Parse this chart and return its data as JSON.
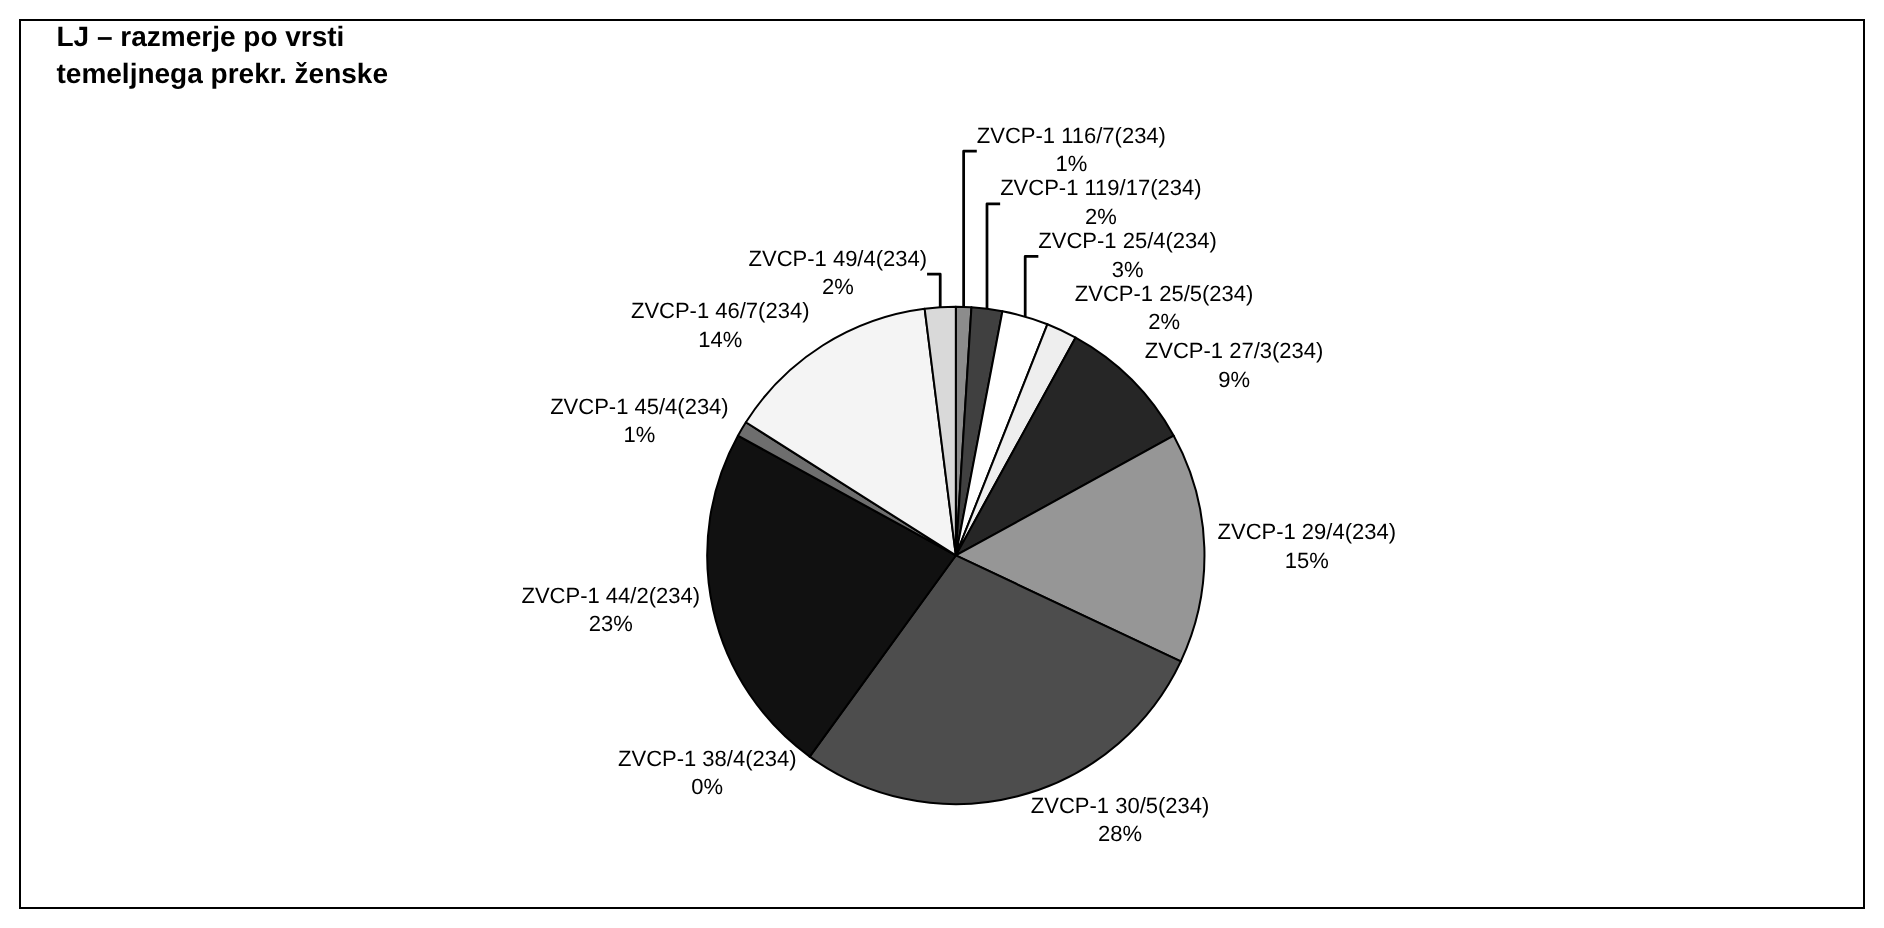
{
  "chart_data": {
    "type": "pie",
    "title": "LJ – razmerje po vrsti\ntemeljnega prekr. ženske",
    "categories": [
      "ZVCP-1 116/7(234)",
      "ZVCP-1 119/17(234)",
      "ZVCP-1 25/4(234)",
      "ZVCP-1 25/5(234)",
      "ZVCP-1 27/3(234)",
      "ZVCP-1 29/4(234)",
      "ZVCP-1 30/5(234)",
      "ZVCP-1 38/4(234)",
      "ZVCP-1 44/2(234)",
      "ZVCP-1 45/4(234)",
      "ZVCP-1 46/7(234)",
      "ZVCP-1 49/4(234)"
    ],
    "values": [
      1,
      2,
      3,
      2,
      9,
      15,
      28,
      0,
      23,
      1,
      14,
      2
    ],
    "colors": [
      "#8c8c8c",
      "#404040",
      "#ffffff",
      "#eeeeee",
      "#262626",
      "#969696",
      "#4d4d4d",
      "#c0c0c0",
      "#111111",
      "#6e6e6e",
      "#f4f4f4",
      "#d9d9d9"
    ],
    "value_labels": [
      "1%",
      "2%",
      "3%",
      "2%",
      "9%",
      "15%",
      "28%",
      "0%",
      "23%",
      "1%",
      "14%",
      "2%"
    ],
    "legend": false
  }
}
